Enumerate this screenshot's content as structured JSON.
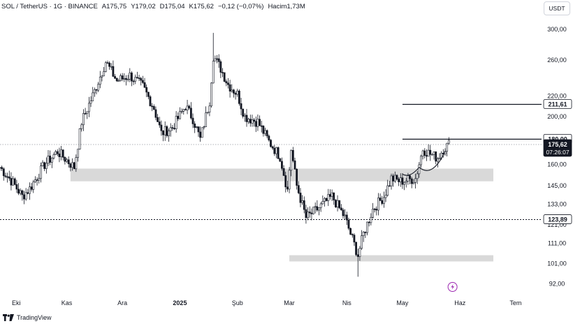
{
  "header": {
    "symbol": "SOL / TetherUS · 1G · BINANCE",
    "open": "A175,75",
    "high": "Y179,02",
    "low": "D175,04",
    "close": "K175,62",
    "change": "−0,12 (−0,07%)",
    "volume": "Hacim1,73M"
  },
  "currency": "USDT",
  "brand": "TradingView",
  "colors": {
    "up": "#131722",
    "down": "#131722",
    "zone": "#d9d9d9",
    "label_bg": "#131722",
    "label_text": "#ffffff"
  },
  "chart_data": {
    "type": "candlestick",
    "y_scale": "log",
    "ylim": [
      88,
      320
    ],
    "y_ticks": [
      "300,00",
      "260,00",
      "220,00",
      "200,00",
      "160,00",
      "145,00",
      "133,00",
      "121,00",
      "111,00",
      "101,00",
      "92,00"
    ],
    "y_tick_values": [
      300,
      260,
      220,
      200,
      160,
      145,
      133,
      121,
      111,
      101,
      92
    ],
    "x_ticks": [
      "Eki",
      "Kas",
      "Ara",
      "2025",
      "Şub",
      "Mar",
      "Nis",
      "May",
      "Haz",
      "Tem"
    ],
    "x_tick_dates": [
      "2024-10-01",
      "2024-11-01",
      "2024-12-01",
      "2025-01-01",
      "2025-02-01",
      "2025-03-01",
      "2025-04-01",
      "2025-05-01",
      "2025-06-01",
      "2025-07-01"
    ],
    "x_range": [
      "2024-09-26",
      "2025-07-15"
    ],
    "price_path": [
      [
        "2024-09-26",
        158
      ],
      [
        "2024-10-03",
        147
      ],
      [
        "2024-10-08",
        138
      ],
      [
        "2024-10-12",
        143
      ],
      [
        "2024-10-20",
        160
      ],
      [
        "2024-10-27",
        170
      ],
      [
        "2024-11-05",
        158
      ],
      [
        "2024-11-09",
        195
      ],
      [
        "2024-11-16",
        225
      ],
      [
        "2024-11-22",
        258
      ],
      [
        "2024-11-28",
        236
      ],
      [
        "2024-12-05",
        242
      ],
      [
        "2024-12-12",
        230
      ],
      [
        "2024-12-18",
        208
      ],
      [
        "2024-12-22",
        185
      ],
      [
        "2024-12-28",
        190
      ],
      [
        "2025-01-04",
        210
      ],
      [
        "2025-01-08",
        198
      ],
      [
        "2025-01-12",
        180
      ],
      [
        "2025-01-17",
        215
      ],
      [
        "2025-01-19",
        265
      ],
      [
        "2025-01-23",
        250
      ],
      [
        "2025-01-27",
        232
      ],
      [
        "2025-02-01",
        222
      ],
      [
        "2025-02-05",
        200
      ],
      [
        "2025-02-12",
        195
      ],
      [
        "2025-02-18",
        178
      ],
      [
        "2025-02-24",
        166
      ],
      [
        "2025-02-28",
        142
      ],
      [
        "2025-03-02",
        172
      ],
      [
        "2025-03-05",
        145
      ],
      [
        "2025-03-10",
        125
      ],
      [
        "2025-03-16",
        130
      ],
      [
        "2025-03-24",
        138
      ],
      [
        "2025-03-31",
        125
      ],
      [
        "2025-04-07",
        105
      ],
      [
        "2025-04-10",
        116
      ],
      [
        "2025-04-15",
        130
      ],
      [
        "2025-04-21",
        138
      ],
      [
        "2025-04-25",
        150
      ],
      [
        "2025-04-30",
        148
      ],
      [
        "2025-05-08",
        150
      ],
      [
        "2025-05-12",
        172
      ],
      [
        "2025-05-16",
        168
      ],
      [
        "2025-05-20",
        165
      ],
      [
        "2025-05-23",
        172
      ],
      [
        "2025-05-26",
        176
      ]
    ],
    "extremes": {
      "ath_high": [
        "2025-01-19",
        295
      ],
      "year_low": [
        "2025-04-07",
        95
      ]
    },
    "last": {
      "value": 175.62,
      "label": "175,62",
      "countdown": "07:26:07"
    },
    "levels": [
      {
        "value": 211.61,
        "label": "211,61",
        "from": "2025-05-01"
      },
      {
        "value": 180.0,
        "label": "180,00",
        "from": "2025-05-01"
      },
      {
        "value": 123.89,
        "label": "123,89",
        "from": "2024-09-26"
      }
    ],
    "zones": [
      {
        "low": 148,
        "high": 157,
        "from": "2024-11-03",
        "to": "2025-06-19"
      },
      {
        "low": 102,
        "high": 105,
        "from": "2025-03-01",
        "to": "2025-06-19"
      }
    ]
  }
}
